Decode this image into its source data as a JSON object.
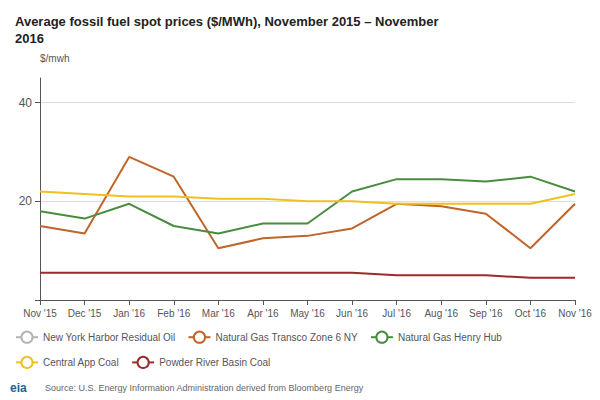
{
  "chart_data": {
    "type": "line",
    "title": "Average fossil fuel spot prices ($/MWh), November 2015 – November\n2016",
    "y_label": "$/mwh",
    "annotations": [
      "eia",
      "Source: U.S. Energy Information Administration derived from Bloomberg Energy"
    ],
    "categories": [
      "Nov '15",
      "Dec '15",
      "Jan '16",
      "Feb '16",
      "Mar '16",
      "Apr '16",
      "May '16",
      "Jun '16",
      "Jul '16",
      "Aug '16",
      "Sep '16",
      "Oct '16",
      "Nov '16"
    ],
    "series": [
      {
        "name": "New York Harbor Residual Oil",
        "color": "#b3b3b3",
        "values": [
          null,
          null,
          null,
          null,
          null,
          null,
          null,
          null,
          null,
          null,
          null,
          null,
          null
        ]
      },
      {
        "name": "Natural Gas Transco Zone 6 NY",
        "color": "#c0652a",
        "values": [
          15.0,
          13.5,
          29.0,
          25.0,
          10.5,
          12.5,
          13.0,
          14.5,
          19.5,
          19.0,
          17.5,
          10.5,
          19.5
        ]
      },
      {
        "name": "Natural Gas Henry Hub",
        "color": "#4a8c3f",
        "values": [
          18.0,
          16.5,
          19.5,
          15.0,
          13.5,
          15.5,
          15.5,
          22.0,
          24.5,
          24.5,
          24.0,
          25.0,
          22.0
        ]
      },
      {
        "name": "Central App Coal",
        "color": "#f0c020",
        "values": [
          22.0,
          21.5,
          21.0,
          21.0,
          20.5,
          20.5,
          20.0,
          20.0,
          19.5,
          19.5,
          19.5,
          19.5,
          21.5
        ]
      },
      {
        "name": "Powder River Basin Coal",
        "color": "#9e2a2b",
        "values": [
          5.5,
          5.5,
          5.5,
          5.5,
          5.5,
          5.5,
          5.5,
          5.5,
          5.0,
          5.0,
          5.0,
          4.5,
          4.5
        ]
      }
    ],
    "ylim": [
      0,
      45
    ],
    "yticks": [
      {
        "value": 0,
        "label": ""
      },
      20,
      40
    ],
    "grid": true,
    "legend": "bottom"
  }
}
